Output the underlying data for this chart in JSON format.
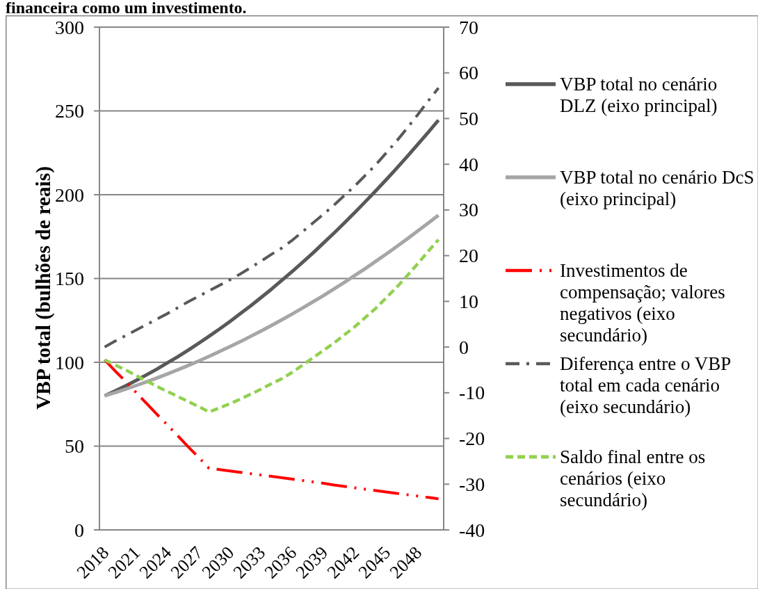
{
  "chart_data": {
    "type": "line",
    "title": "financeira como um investimento.",
    "ylabel": "VBP total (bulhões de reais)",
    "categories": [
      "2018",
      null,
      null,
      "2021",
      null,
      null,
      "2024",
      null,
      null,
      "2027",
      null,
      null,
      "2030",
      null,
      null,
      "2033",
      null,
      null,
      "2036",
      null,
      null,
      "2039",
      null,
      null,
      "2042",
      null,
      null,
      "2045",
      null,
      null,
      "2048",
      null,
      null
    ],
    "ylim": [
      0,
      300
    ],
    "yticks": [
      0,
      50,
      100,
      150,
      200,
      250,
      300
    ],
    "y2lim": [
      -40,
      70
    ],
    "y2ticks": [
      -40,
      -30,
      -20,
      -10,
      0,
      10,
      20,
      30,
      40,
      50,
      60,
      70
    ],
    "grid": "y",
    "legend": "right",
    "series": [
      {
        "name": "VBP total no cenário DLZ (eixo principal)",
        "color": "#595959",
        "line_style": "solid",
        "values": [
          80.0,
          82.9,
          85.9,
          89.1,
          92.5,
          95.9,
          99.6,
          103.3,
          107.2,
          111.3,
          115.5,
          119.8,
          124.3,
          129.0,
          133.7,
          138.7,
          143.7,
          149.0,
          154.3,
          159.8,
          165.4,
          171.3,
          177.2,
          183.3,
          189.5,
          195.9,
          202.4,
          209.0,
          215.8,
          222.8,
          229.9,
          237.1,
          244.5
        ]
      },
      {
        "name": "VBP total no cenário DcS (eixo principal)",
        "color": "#a6a6a6",
        "line_style": "solid",
        "values": [
          80.0,
          81.9,
          84.0,
          86.1,
          88.3,
          90.6,
          93.0,
          95.5,
          98.1,
          100.7,
          103.5,
          106.4,
          109.3,
          112.3,
          115.5,
          118.7,
          122.0,
          125.4,
          128.9,
          132.5,
          136.2,
          139.9,
          143.8,
          147.8,
          151.9,
          156.0,
          160.3,
          164.6,
          169.1,
          173.6,
          178.3,
          183.0,
          187.8
        ]
      },
      {
        "name": "Investimentos de compensação; valores negativos (eixo secundário)",
        "color": "#ff0000",
        "line_style": "dashdotdot",
        "axis": "y2",
        "values": [
          -2.8,
          -5.2,
          -7.5,
          -9.9,
          -12.3,
          -14.7,
          -17.0,
          -19.4,
          -21.8,
          -24.1,
          -26.5,
          -26.8,
          -27.1,
          -27.4,
          -27.7,
          -28.0,
          -28.3,
          -28.6,
          -28.9,
          -29.2,
          -29.5,
          -29.8,
          -30.2,
          -30.5,
          -30.8,
          -31.1,
          -31.4,
          -31.7,
          -32.0,
          -32.3,
          -32.6,
          -32.9,
          -33.2
        ]
      },
      {
        "name": "Diferença entre o VBP total em cada cenário (eixo secundário)",
        "color": "#595959",
        "line_style": "dashdot",
        "axis": "y2",
        "values": [
          0,
          1.3,
          2.5,
          3.7,
          4.9,
          6.1,
          7.3,
          8.6,
          9.9,
          11.1,
          12.3,
          13.5,
          14.7,
          16.0,
          17.4,
          18.8,
          20.3,
          21.7,
          23.4,
          25.3,
          27.2,
          29.1,
          31.1,
          33.2,
          35.3,
          37.6,
          39.9,
          42.5,
          45.1,
          47.9,
          50.8,
          53.8,
          56.7
        ]
      },
      {
        "name": "Saldo final entre os cenários (eixo secundário)",
        "color": "#92d050",
        "line_style": "dashed",
        "axis": "y2",
        "values": [
          -2.8,
          -3.9,
          -5.0,
          -6.2,
          -7.4,
          -8.6,
          -9.7,
          -10.8,
          -11.9,
          -13.0,
          -14.2,
          -13.3,
          -12.4,
          -11.4,
          -10.3,
          -9.2,
          -8.0,
          -6.9,
          -5.5,
          -3.9,
          -2.3,
          -0.7,
          0.9,
          2.7,
          4.5,
          6.5,
          8.5,
          10.8,
          13.1,
          15.6,
          18.2,
          20.9,
          23.5
        ]
      }
    ]
  }
}
